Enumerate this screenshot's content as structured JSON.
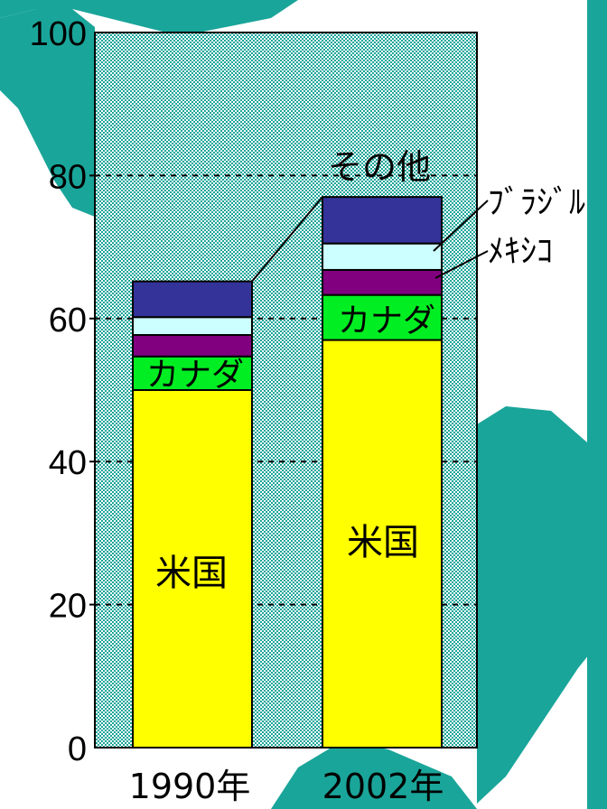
{
  "colors": {
    "米国": "#ffff00",
    "カナダ": "#00ee22",
    "メキシコ": "#800080",
    "ブラジル": "#ccffff",
    "その他": "#333399",
    "background_map": "#1aa59a"
  },
  "chart_data": {
    "type": "bar",
    "stacked": true,
    "categories": [
      "1990年",
      "2002年"
    ],
    "series": [
      {
        "name": "米国",
        "values": [
          50,
          57
        ]
      },
      {
        "name": "カナダ",
        "values": [
          4.7,
          6.3
        ]
      },
      {
        "name": "メキシコ",
        "values": [
          3,
          3.5
        ]
      },
      {
        "name": "ブラジル",
        "values": [
          2.5,
          3.7
        ]
      },
      {
        "name": "その他",
        "values": [
          5,
          6.5
        ]
      }
    ],
    "ylim": [
      0,
      100
    ],
    "yticks": [
      "0",
      "20",
      "40",
      "60",
      "80",
      "100"
    ],
    "grid": "dashed horizontal",
    "segment_labels": {
      "us": "米国",
      "canada": "カナダ"
    },
    "callouts": {
      "other": "その他",
      "brazil": "ﾌﾞﾗｼﾞﾙ",
      "mexico": "ﾒｷｼｺ"
    }
  }
}
